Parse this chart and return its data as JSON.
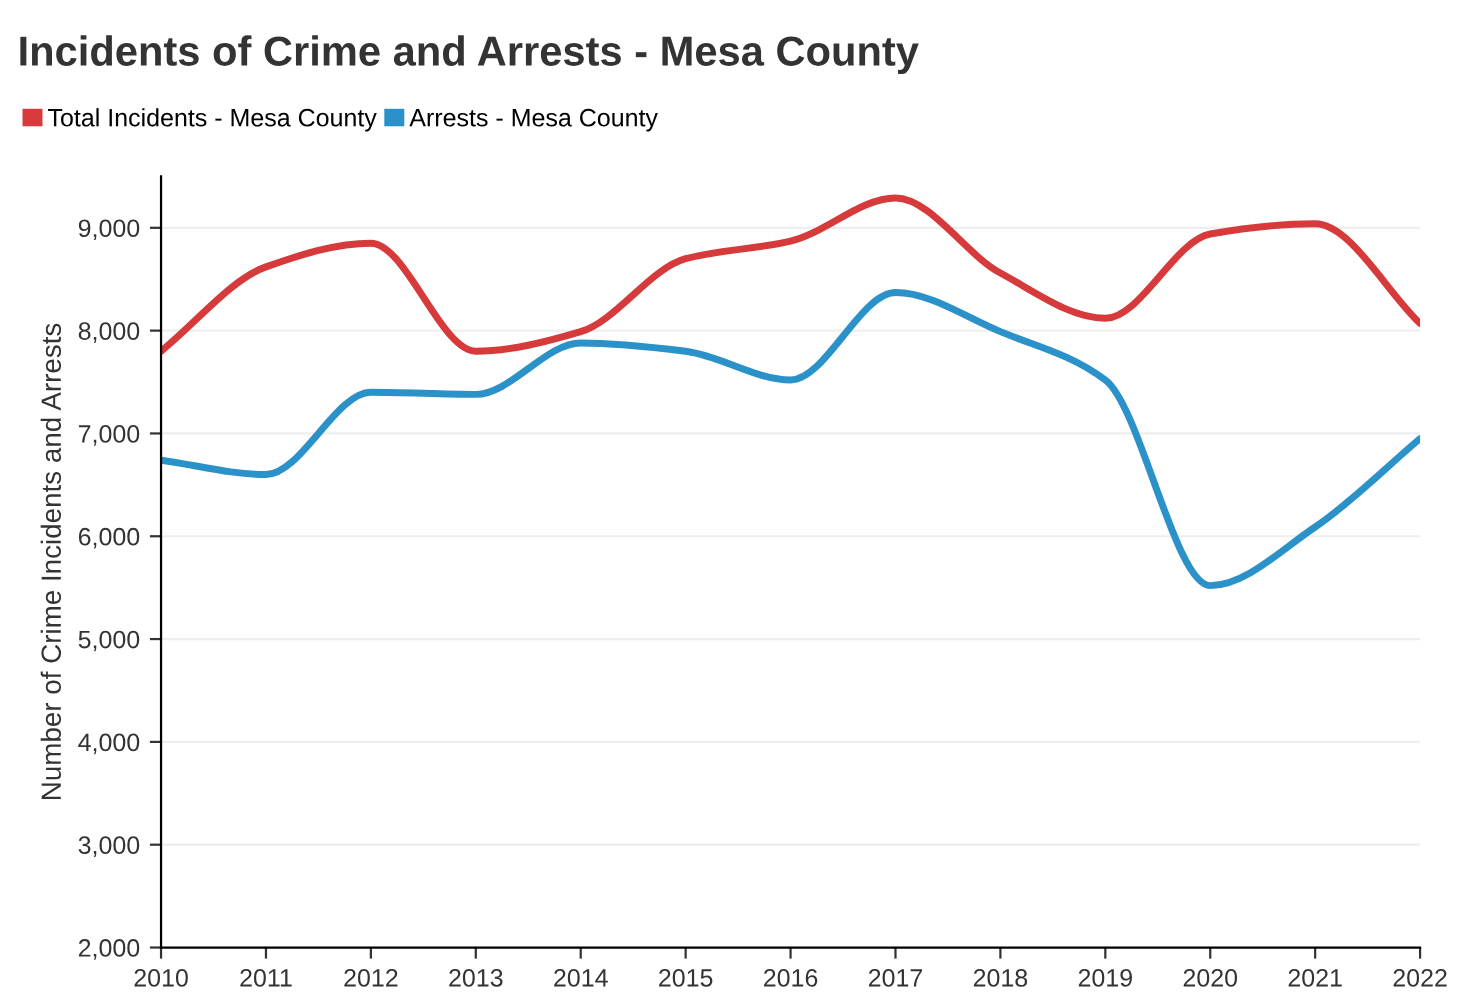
{
  "chart_data": {
    "type": "line",
    "title": "Incidents of Crime and Arrests - Mesa County",
    "ylabel": "Number of Crime Incidents and Arrests",
    "x": [
      2010,
      2011,
      2012,
      2013,
      2014,
      2015,
      2016,
      2017,
      2018,
      2019,
      2020,
      2021,
      2022
    ],
    "series": [
      {
        "name": "Total Incidents - Mesa County",
        "color": "#d63a3a",
        "values": [
          7800,
          8620,
          8850,
          7800,
          7990,
          8700,
          8870,
          9290,
          8560,
          8120,
          8940,
          9040,
          8070
        ]
      },
      {
        "name": "Arrests - Mesa County",
        "color": "#2b91c9",
        "values": [
          6740,
          6600,
          7400,
          7380,
          7880,
          7800,
          7520,
          8370,
          7990,
          7520,
          5520,
          6090,
          6950
        ]
      }
    ],
    "xlim": [
      2010,
      2022
    ],
    "xticks": [
      2010,
      2011,
      2012,
      2013,
      2014,
      2015,
      2016,
      2017,
      2018,
      2019,
      2020,
      2021,
      2022
    ],
    "ylim": [
      2000,
      9500
    ],
    "yticks": [
      {
        "value": 2000,
        "label": "2,000"
      },
      {
        "value": 3000,
        "label": "3,000"
      },
      {
        "value": 4000,
        "label": "4,000"
      },
      {
        "value": 5000,
        "label": "5,000"
      },
      {
        "value": 6000,
        "label": "6,000"
      },
      {
        "value": 7000,
        "label": "7,000"
      },
      {
        "value": 8000,
        "label": "8,000"
      },
      {
        "value": 9000,
        "label": "9,000"
      }
    ],
    "grid": "y",
    "legend": "top left",
    "marker": "none",
    "line_style": "solid"
  }
}
